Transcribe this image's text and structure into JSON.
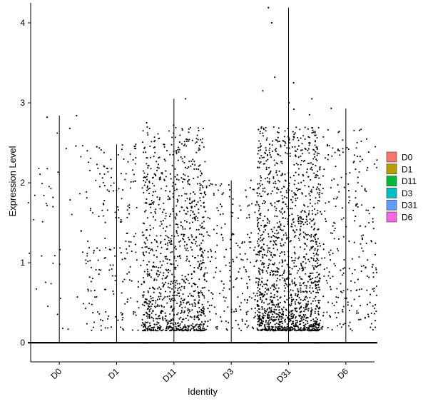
{
  "chart_data": {
    "type": "violin-jitter",
    "title": "",
    "xlabel": "Identity",
    "ylabel": "Expression Level",
    "ylim": [
      -0.24,
      4.25
    ],
    "yticks": [
      0,
      1,
      2,
      3,
      4
    ],
    "categories": [
      "D0",
      "D1",
      "D11",
      "D3",
      "D31",
      "D6"
    ],
    "colors": [
      "#F8766D",
      "#B79F00",
      "#00BA38",
      "#00BFC4",
      "#619CFF",
      "#F564E3"
    ],
    "grid": false,
    "legend_position": "right",
    "legend": [
      "D0",
      "D1",
      "D11",
      "D3",
      "D31",
      "D6"
    ],
    "violin_max": [
      2.84,
      2.48,
      3.05,
      2.03,
      4.19,
      2.93
    ],
    "nonzero_point_counts": [
      45,
      220,
      1050,
      260,
      1450,
      300
    ],
    "nonzero_range": [
      0.15,
      2.7
    ],
    "outliers": [
      {
        "group": "D0",
        "y": 2.84
      },
      {
        "group": "D0",
        "y": 2.68
      },
      {
        "group": "D0",
        "y": 2.82
      },
      {
        "group": "D0",
        "y": 2.46
      },
      {
        "group": "D0",
        "y": 2.4
      },
      {
        "group": "D1",
        "y": 2.48
      },
      {
        "group": "D1",
        "y": 2.45
      },
      {
        "group": "D11",
        "y": 3.05
      },
      {
        "group": "D11",
        "y": 2.75
      },
      {
        "group": "D11",
        "y": 2.72
      },
      {
        "group": "D3",
        "y": 2.03
      },
      {
        "group": "D31",
        "y": 4.19
      },
      {
        "group": "D31",
        "y": 4.0
      },
      {
        "group": "D31",
        "y": 3.32
      },
      {
        "group": "D31",
        "y": 3.25
      },
      {
        "group": "D31",
        "y": 3.15
      },
      {
        "group": "D31",
        "y": 3.05
      },
      {
        "group": "D31",
        "y": 3.0
      },
      {
        "group": "D31",
        "y": 2.92
      },
      {
        "group": "D31",
        "y": 2.85
      },
      {
        "group": "D6",
        "y": 2.93
      },
      {
        "group": "D6",
        "y": 2.4
      }
    ]
  }
}
